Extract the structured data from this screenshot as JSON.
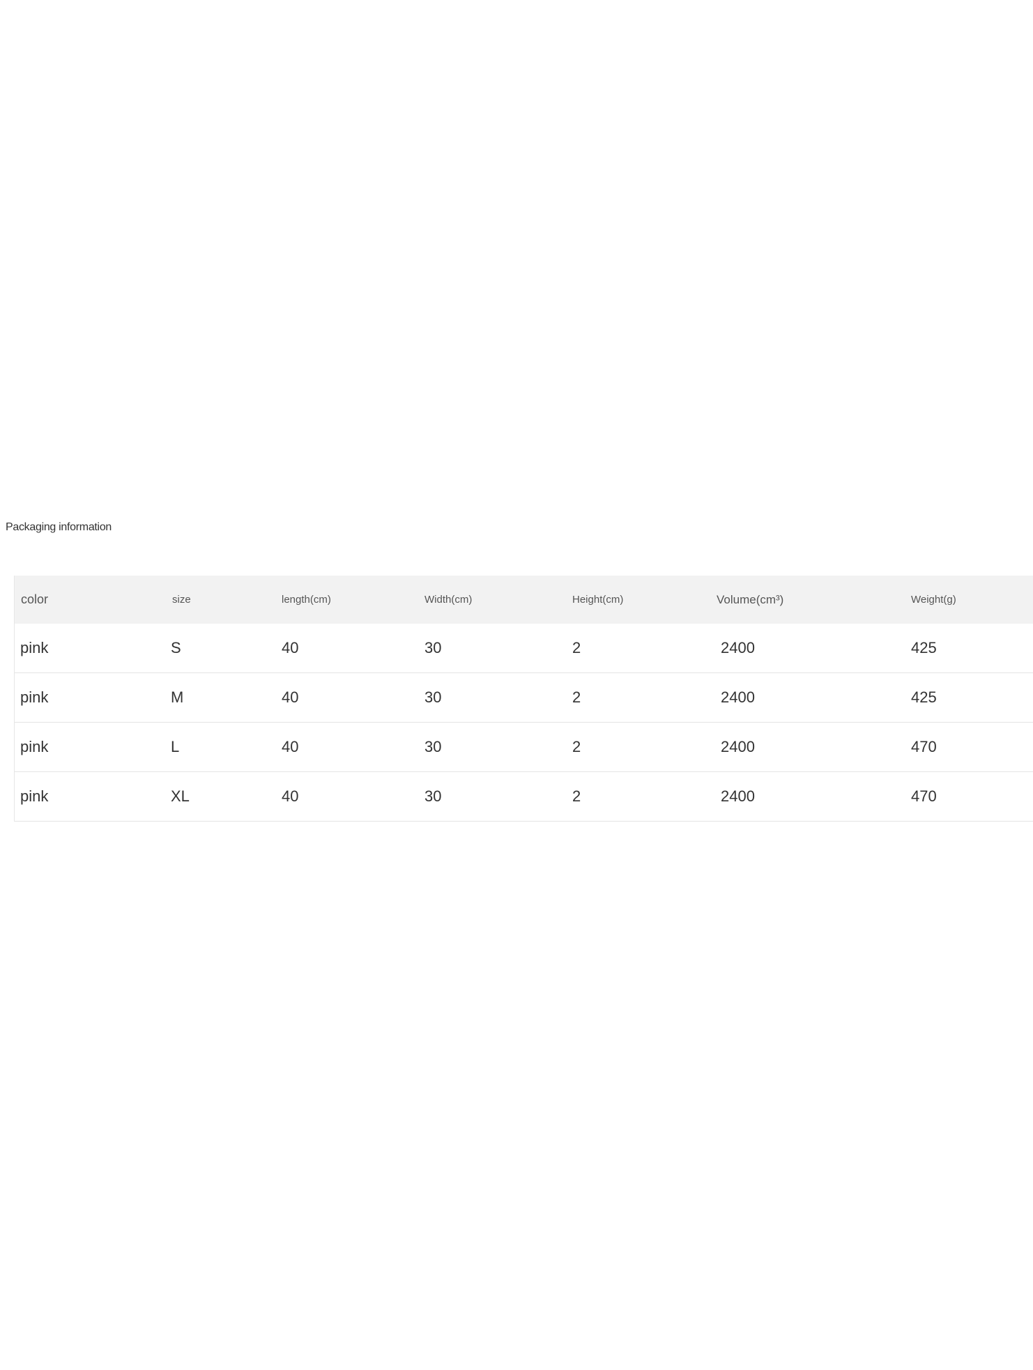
{
  "title": "Packaging information",
  "table": {
    "headers": [
      "color",
      "size",
      "length(cm)",
      "Width(cm)",
      "Height(cm)",
      "Volume(cm³)",
      "Weight(g)"
    ],
    "rows": [
      [
        "pink",
        "S",
        "40",
        "30",
        "2",
        "2400",
        "425"
      ],
      [
        "pink",
        "M",
        "40",
        "30",
        "2",
        "2400",
        "425"
      ],
      [
        "pink",
        "L",
        "40",
        "30",
        "2",
        "2400",
        "470"
      ],
      [
        "pink",
        "XL",
        "40",
        "30",
        "2",
        "2400",
        "470"
      ]
    ]
  }
}
